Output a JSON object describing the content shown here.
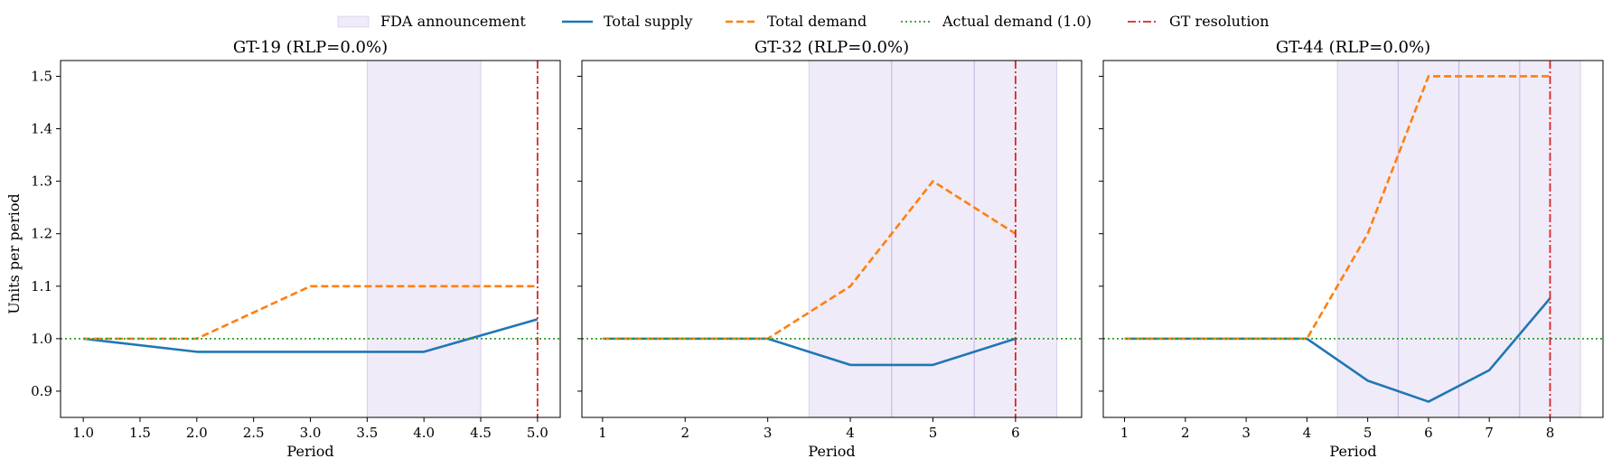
{
  "legend": [
    {
      "key": "fda",
      "label": "FDA announcement",
      "color": "#b39ddb"
    },
    {
      "key": "supply",
      "label": "Total supply",
      "color": "#1f77b4"
    },
    {
      "key": "demand",
      "label": "Total demand",
      "color": "#ff7f0e"
    },
    {
      "key": "actual",
      "label": "Actual demand (1.0)",
      "color": "#2ca02c"
    },
    {
      "key": "gt",
      "label": "GT resolution",
      "color": "#d62728"
    }
  ],
  "chart_data": [
    {
      "type": "line",
      "title": "GT-19 (RLP=0.0%)",
      "xlabel": "Period",
      "ylabel": "Units per period",
      "xlim": [
        0.8,
        5.2
      ],
      "ylim": [
        0.85,
        1.53
      ],
      "xticks": [
        1.0,
        1.5,
        2.0,
        2.5,
        3.0,
        3.5,
        4.0,
        4.5,
        5.0
      ],
      "xtick_labels": [
        "1.0",
        "1.5",
        "2.0",
        "2.5",
        "3.0",
        "3.5",
        "4.0",
        "4.5",
        "5.0"
      ],
      "yticks": [
        0.9,
        1.0,
        1.1,
        1.2,
        1.3,
        1.4,
        1.5
      ],
      "ytick_labels": [
        "0.9",
        "1.0",
        "1.1",
        "1.2",
        "1.3",
        "1.4",
        "1.5"
      ],
      "shaded_spans": [
        [
          3.5,
          4.5
        ]
      ],
      "gt_resolution": 5,
      "actual_demand": 1.0,
      "series": [
        {
          "name": "Total supply",
          "x": [
            1,
            2,
            3,
            4,
            5
          ],
          "values": [
            1.0,
            0.975,
            0.975,
            0.975,
            1.037
          ]
        },
        {
          "name": "Total demand",
          "x": [
            1,
            2,
            3,
            4,
            5
          ],
          "values": [
            1.0,
            1.0,
            1.1,
            1.1,
            1.1
          ]
        }
      ]
    },
    {
      "type": "line",
      "title": "GT-32 (RLP=0.0%)",
      "xlabel": "Period",
      "ylabel": "",
      "xlim": [
        0.75,
        6.8
      ],
      "ylim": [
        0.85,
        1.53
      ],
      "xticks": [
        1,
        2,
        3,
        4,
        5,
        6
      ],
      "xtick_labels": [
        "1",
        "2",
        "3",
        "4",
        "5",
        "6"
      ],
      "yticks": [
        0.9,
        1.0,
        1.1,
        1.2,
        1.3,
        1.4,
        1.5
      ],
      "ytick_labels": [],
      "shaded_spans": [
        [
          3.5,
          4.5
        ],
        [
          4.5,
          5.5
        ],
        [
          5.5,
          6.5
        ]
      ],
      "gt_resolution": 6,
      "actual_demand": 1.0,
      "series": [
        {
          "name": "Total supply",
          "x": [
            1,
            2,
            3,
            4,
            5,
            6
          ],
          "values": [
            1.0,
            1.0,
            1.0,
            0.95,
            0.95,
            1.0
          ]
        },
        {
          "name": "Total demand",
          "x": [
            1,
            2,
            3,
            4,
            5,
            6
          ],
          "values": [
            1.0,
            1.0,
            1.0,
            1.1,
            1.3,
            1.2
          ]
        }
      ]
    },
    {
      "type": "line",
      "title": "GT-44 (RLP=0.0%)",
      "xlabel": "Period",
      "ylabel": "",
      "xlim": [
        0.65,
        8.87
      ],
      "ylim": [
        0.85,
        1.53
      ],
      "xticks": [
        1,
        2,
        3,
        4,
        5,
        6,
        7,
        8
      ],
      "xtick_labels": [
        "1",
        "2",
        "3",
        "4",
        "5",
        "6",
        "7",
        "8"
      ],
      "yticks": [
        0.9,
        1.0,
        1.1,
        1.2,
        1.3,
        1.4,
        1.5
      ],
      "ytick_labels": [],
      "shaded_spans": [
        [
          4.5,
          5.5
        ],
        [
          5.5,
          6.5
        ],
        [
          6.5,
          7.5
        ],
        [
          7.5,
          8.5
        ]
      ],
      "gt_resolution": 8,
      "actual_demand": 1.0,
      "series": [
        {
          "name": "Total supply",
          "x": [
            1,
            2,
            3,
            4,
            5,
            6,
            7,
            8
          ],
          "values": [
            1.0,
            1.0,
            1.0,
            1.0,
            0.92,
            0.88,
            0.94,
            1.077
          ]
        },
        {
          "name": "Total demand",
          "x": [
            1,
            2,
            3,
            4,
            5,
            6,
            7,
            8
          ],
          "values": [
            1.0,
            1.0,
            1.0,
            1.0,
            1.2,
            1.5,
            1.5,
            1.5
          ]
        }
      ]
    }
  ]
}
